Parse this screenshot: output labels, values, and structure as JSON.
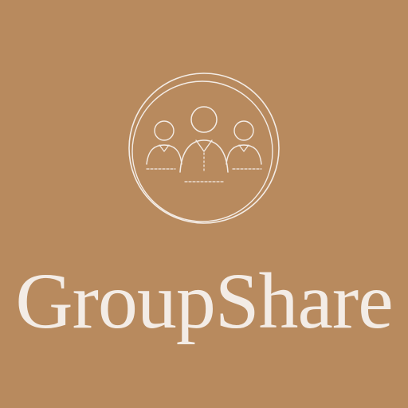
{
  "brand": {
    "name": "GroupShare",
    "icon": "group-people-icon"
  },
  "colors": {
    "background": "#b88a5e",
    "foreground": "#f3ece6"
  }
}
